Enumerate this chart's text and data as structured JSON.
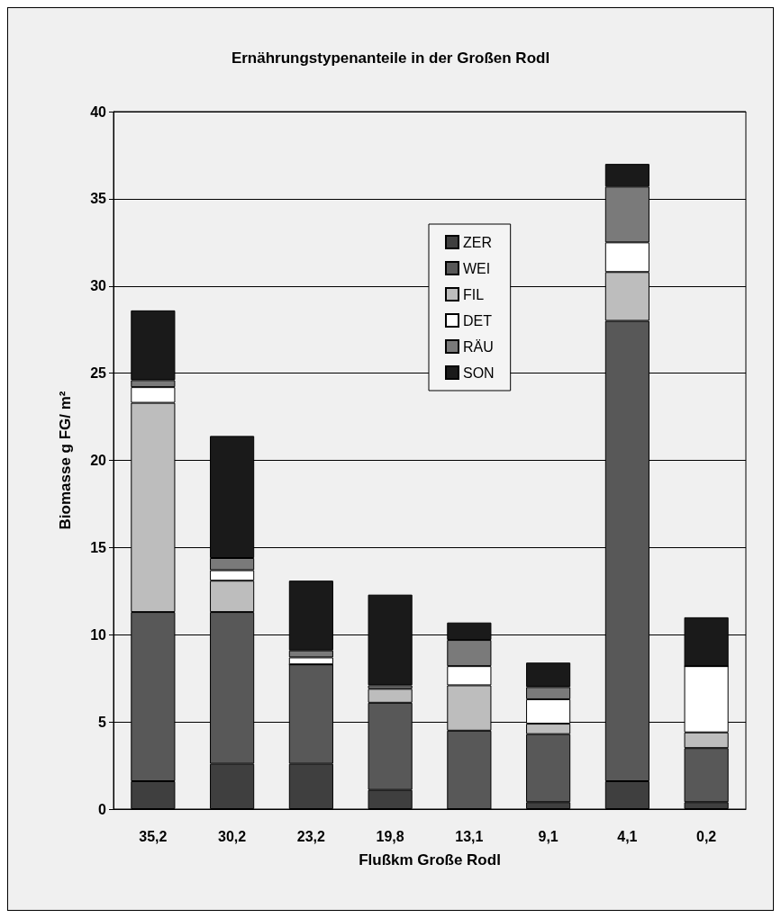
{
  "chart_data": {
    "type": "bar",
    "title": "Ernährungstypenanteile in der Großen Rodl",
    "xlabel": "Flußkm Große Rodl",
    "ylabel": "Biomasse g FG/ m²",
    "categories": [
      "35,2",
      "30,2",
      "23,2",
      "19,8",
      "13,1",
      "9,1",
      "4,1",
      "0,2"
    ],
    "stacked": true,
    "ylim": [
      0,
      40
    ],
    "yticks": [
      0,
      5,
      10,
      15,
      20,
      25,
      30,
      35,
      40
    ],
    "grid": "y",
    "legend": "top",
    "series": [
      {
        "name": "ZER",
        "color": "#3f3f3f",
        "values": [
          1.6,
          2.6,
          2.6,
          1.1,
          0,
          0.4,
          1.6,
          0.4
        ]
      },
      {
        "name": "WEI",
        "color": "#585858",
        "values": [
          9.7,
          8.7,
          5.7,
          5.0,
          4.5,
          3.9,
          26.4,
          3.1
        ]
      },
      {
        "name": "FIL",
        "color": "#bdbdbd",
        "values": [
          12.0,
          1.8,
          0,
          0.8,
          2.6,
          0.6,
          2.8,
          0.9
        ]
      },
      {
        "name": "DET",
        "color": "#ffffff",
        "values": [
          0.9,
          0.6,
          0.4,
          null,
          1.1,
          1.4,
          1.7,
          3.8
        ]
      },
      {
        "name": "RÄU",
        "color": "#7a7a7a",
        "values": [
          0.4,
          0.7,
          0.4,
          0.2,
          1.5,
          0.7,
          3.2,
          0
        ]
      },
      {
        "name": "SON",
        "color": "#1a1a1a",
        "values": [
          4.0,
          7.0,
          4.0,
          5.2,
          1.0,
          1.4,
          1.3,
          2.8
        ]
      }
    ]
  }
}
